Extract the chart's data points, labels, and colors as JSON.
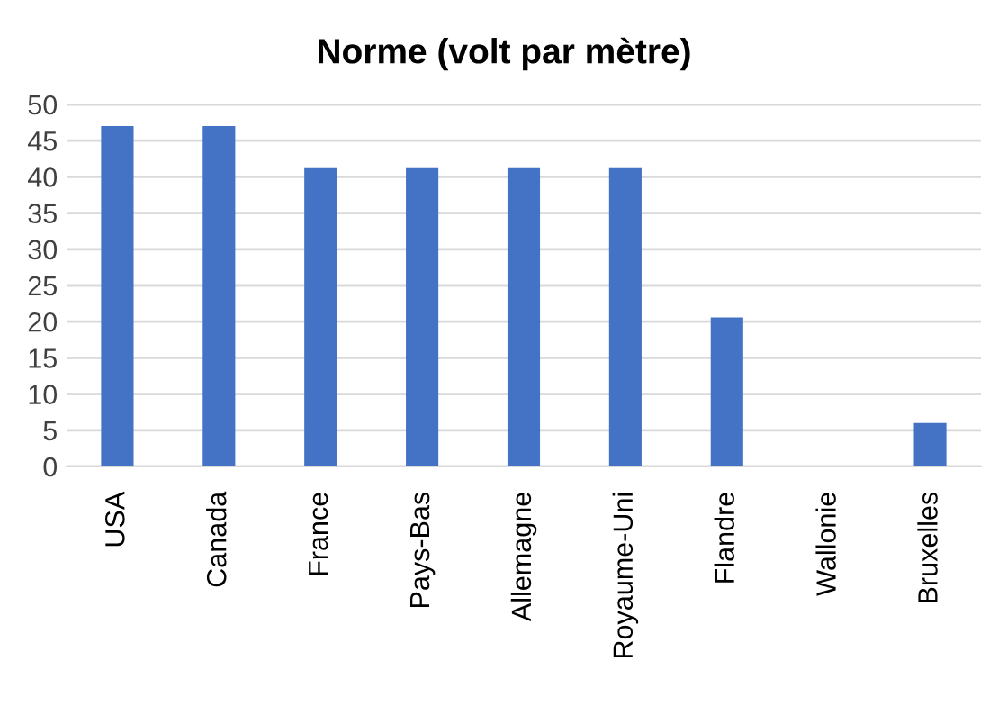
{
  "chart_data": {
    "type": "bar",
    "title": "Norme (volt par mètre)",
    "categories": [
      "USA",
      "Canada",
      "France",
      "Pays-Bas",
      "Allemagne",
      "Royaume-Uni",
      "Flandre",
      "Wallonie",
      "Bruxelles"
    ],
    "values": [
      47,
      47,
      41.2,
      41.2,
      41.2,
      41.2,
      20.6,
      null,
      6
    ],
    "color": "#4472c4",
    "ylim": [
      0,
      50
    ],
    "yticks": [
      0,
      5,
      10,
      15,
      20,
      25,
      30,
      35,
      40,
      45,
      50
    ],
    "grid": "y"
  }
}
